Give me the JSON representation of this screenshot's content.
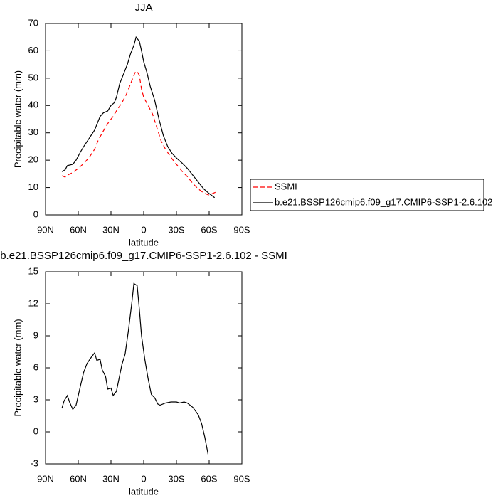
{
  "chart_data": [
    {
      "type": "line",
      "title": "JJA",
      "xlabel": "latitude",
      "ylabel": "Precipitable water (mm)",
      "xlim": [
        90,
        -90
      ],
      "xticks": [
        {
          "value": 90,
          "label": "90N"
        },
        {
          "value": 60,
          "label": "60N"
        },
        {
          "value": 30,
          "label": "30N"
        },
        0,
        {
          "value": -30,
          "label": "30S"
        },
        {
          "value": -60,
          "label": "60S"
        },
        {
          "value": -90,
          "label": "90S"
        }
      ],
      "ylim": [
        0,
        70
      ],
      "yticks": [
        0,
        10,
        20,
        30,
        40,
        50,
        60,
        70
      ],
      "legend": "right",
      "series": [
        {
          "name": "SSMI",
          "color": "#ff0000",
          "dash": true,
          "x": [
            75,
            72,
            70,
            65,
            60,
            55,
            50,
            45,
            42,
            38,
            35,
            32,
            28,
            25,
            20,
            16,
            12,
            8,
            6,
            4,
            2,
            0,
            -4,
            -8,
            -12,
            -16,
            -20,
            -25,
            -30,
            -35,
            -40,
            -45,
            -50,
            -55,
            -60,
            -63,
            -66
          ],
          "values": [
            14.3,
            13.8,
            14.5,
            15.5,
            17,
            18.8,
            21,
            24,
            27,
            30,
            32,
            34,
            36,
            38,
            41,
            44,
            48,
            52,
            52.5,
            51,
            46,
            43,
            40,
            37,
            32,
            27,
            24,
            21,
            18.5,
            16,
            14,
            11.5,
            9.5,
            8,
            7.2,
            7.8,
            8.3
          ]
        },
        {
          "name": "b.e21.BSSP126cmip6.f09_g17.CMIP6-SSP1-2.6.102",
          "color": "#000000",
          "dash": false,
          "x": [
            75,
            72,
            70,
            65,
            62,
            58,
            55,
            50,
            45,
            42,
            40,
            37,
            33,
            30,
            27,
            25,
            22,
            18,
            15,
            12,
            9,
            7,
            4,
            2,
            0,
            -3,
            -6,
            -10,
            -14,
            -18,
            -22,
            -26,
            -30,
            -35,
            -40,
            -45,
            -50,
            -55,
            -60,
            -65
          ],
          "values": [
            15.8,
            16.5,
            18,
            18.5,
            20,
            23,
            25,
            28,
            31,
            34,
            36,
            37.3,
            38,
            40,
            41,
            43,
            48,
            52,
            55,
            59,
            62,
            65,
            63.5,
            60,
            56,
            52,
            47,
            42,
            35,
            29,
            25,
            22.5,
            20.8,
            19,
            17,
            14.5,
            12,
            9.5,
            7.8,
            6.3
          ]
        }
      ]
    },
    {
      "type": "line",
      "title": "b.e21.BSSP126cmip6.f09_g17.CMIP6-SSP1-2.6.102 - SSMI",
      "xlabel": "latitude",
      "ylabel": "Precipitable water (mm)",
      "xlim": [
        90,
        -90
      ],
      "xticks": [
        {
          "value": 90,
          "label": "90N"
        },
        {
          "value": 60,
          "label": "60N"
        },
        {
          "value": 30,
          "label": "30N"
        },
        0,
        {
          "value": -30,
          "label": "30S"
        },
        {
          "value": -60,
          "label": "60S"
        },
        {
          "value": -90,
          "label": "90S"
        }
      ],
      "ylim": [
        -3,
        15
      ],
      "yticks": [
        -3,
        0,
        3,
        6,
        9,
        12,
        15
      ],
      "series": [
        {
          "color": "#000000",
          "dash": false,
          "x": [
            75,
            73,
            70,
            68,
            65,
            62,
            58,
            55,
            52,
            48,
            45,
            43,
            40,
            38,
            35,
            33,
            30,
            28,
            25,
            20,
            17,
            14,
            11,
            9,
            6,
            4,
            2,
            -1,
            -4,
            -7,
            -10,
            -13,
            -15,
            -20,
            -25,
            -30,
            -33,
            -37,
            -40,
            -45,
            -50,
            -53,
            -56,
            -59
          ],
          "values": [
            2.2,
            2.9,
            3.4,
            2.8,
            2.1,
            2.5,
            4.3,
            5.6,
            6.4,
            7.0,
            7.4,
            6.7,
            6.8,
            5.8,
            5.2,
            4.0,
            4.1,
            3.4,
            3.8,
            6.3,
            7.3,
            9.5,
            12,
            13.9,
            13.7,
            11.5,
            9,
            6.8,
            5,
            3.5,
            3.2,
            2.6,
            2.5,
            2.7,
            2.8,
            2.8,
            2.7,
            2.8,
            2.7,
            2.3,
            1.6,
            0.8,
            -0.5,
            -2.1
          ]
        }
      ]
    }
  ]
}
